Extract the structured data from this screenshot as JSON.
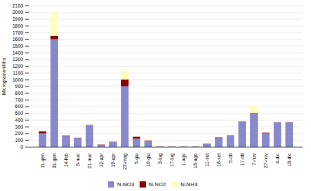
{
  "chart_data": {
    "type": "bar",
    "stacked": true,
    "categories": [
      "11-gen",
      "31-gen",
      "14-feb",
      "6-mar",
      "21-mar",
      "12-apr",
      "19-apr",
      "23-mag",
      "5-giu",
      "19-giu",
      "3-lug",
      "17-lug",
      "1-ago",
      "16-ago",
      "11-set",
      "18-set",
      "5-ott",
      "17-ott",
      "7-nov",
      "27-nov",
      "4-dic",
      "18-dic"
    ],
    "series": [
      {
        "name": "N-NO3",
        "color": "#8888cc",
        "values": [
          200,
          1600,
          160,
          130,
          320,
          30,
          70,
          900,
          120,
          80,
          5,
          5,
          5,
          5,
          40,
          130,
          165,
          370,
          500,
          200,
          360,
          360
        ]
      },
      {
        "name": "N-NO2",
        "color": "#880000",
        "values": [
          30,
          50,
          10,
          5,
          5,
          5,
          5,
          100,
          30,
          10,
          2,
          2,
          2,
          2,
          5,
          10,
          5,
          5,
          5,
          10,
          5,
          5
        ]
      },
      {
        "name": "N-NH3",
        "color": "#ffffbb",
        "values": [
          5,
          350,
          5,
          5,
          5,
          2,
          2,
          130,
          10,
          5,
          2,
          2,
          2,
          2,
          2,
          2,
          2,
          2,
          100,
          2,
          2,
          2
        ]
      }
    ],
    "ylabel": "Microgrammi/litro",
    "ylim": [
      0,
      2100
    ],
    "yticks": [
      0,
      100,
      200,
      300,
      400,
      500,
      600,
      700,
      800,
      900,
      1000,
      1100,
      1200,
      1300,
      1400,
      1500,
      1600,
      1700,
      1800,
      1900,
      2000,
      2100
    ],
    "grid": true,
    "legend": "bottom"
  }
}
